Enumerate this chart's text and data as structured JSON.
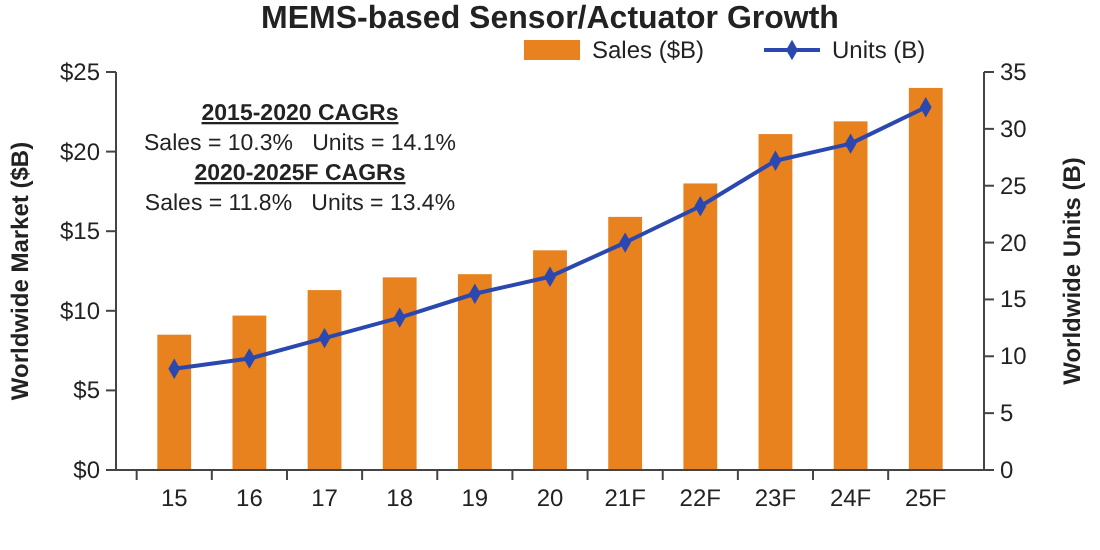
{
  "chart_data": {
    "type": "bar",
    "title": "MEMS-based Sensor/Actuator Growth",
    "categories": [
      "15",
      "16",
      "17",
      "18",
      "19",
      "20",
      "21F",
      "22F",
      "23F",
      "24F",
      "25F"
    ],
    "series": [
      {
        "name": "Sales ($B)",
        "color": "#e8821e",
        "values": [
          8.5,
          9.7,
          11.3,
          12.1,
          12.3,
          13.8,
          15.9,
          18.0,
          21.1,
          21.9,
          24.0
        ]
      },
      {
        "name": "Units (B)",
        "type": "line",
        "axis": "y2",
        "color": "#2a48b0",
        "marker": "diamond",
        "values": [
          8.9,
          9.8,
          11.6,
          13.4,
          15.5,
          17.0,
          20.0,
          23.2,
          27.2,
          28.7,
          31.9
        ]
      }
    ],
    "ylabel": "Worldwide Market ($B)",
    "y2label": "Worldwide Units (B)",
    "ylim": [
      0,
      25
    ],
    "yticks": [
      {
        "value": 0,
        "label": "$0"
      },
      {
        "value": 5,
        "label": "$5"
      },
      {
        "value": 10,
        "label": "$10"
      },
      {
        "value": 15,
        "label": "$15"
      },
      {
        "value": 20,
        "label": "$20"
      },
      {
        "value": 25,
        "label": "$25"
      }
    ],
    "y2lim": [
      0,
      35
    ],
    "y2ticks": [
      0,
      5,
      10,
      15,
      20,
      25,
      30,
      35
    ],
    "legend": "top",
    "annotations": [
      "2015-2020 CAGRs",
      "Sales = 10.3%   Units = 14.1%",
      "2020-2025F CAGRs",
      "Sales = 11.8%   Units = 13.4%"
    ]
  }
}
